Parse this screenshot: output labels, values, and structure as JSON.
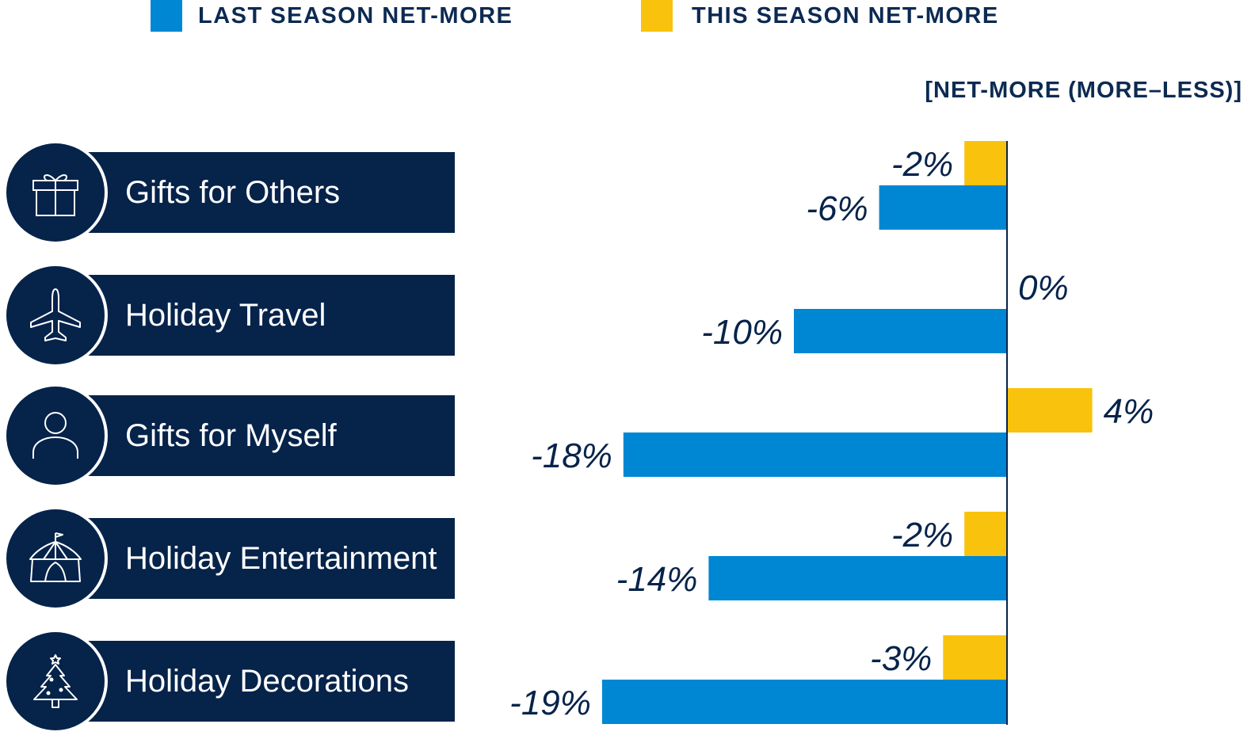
{
  "legend": {
    "last_label": "LAST SEASON NET-MORE",
    "this_label": "THIS SEASON NET-MORE",
    "last_color": "#0087d4",
    "this_color": "#f9c20c"
  },
  "axis_note": "[NET-MORE (MORE–LESS)]",
  "categories": [
    {
      "label": "Gifts for Others",
      "icon": "gift-icon"
    },
    {
      "label": "Holiday Travel",
      "icon": "airplane-icon"
    },
    {
      "label": "Gifts for Myself",
      "icon": "person-icon"
    },
    {
      "label": "Holiday Entertainment",
      "icon": "circus-tent-icon"
    },
    {
      "label": "Holiday Decorations",
      "icon": "christmas-tree-icon"
    }
  ],
  "chart_data": {
    "type": "bar",
    "orientation": "horizontal",
    "categories": [
      "Gifts for Others",
      "Holiday Travel",
      "Gifts for Myself",
      "Holiday Entertainment",
      "Holiday Decorations"
    ],
    "series": [
      {
        "name": "THIS SEASON NET-MORE",
        "color": "#f9c20c",
        "values": [
          -2,
          0,
          4,
          -2,
          -3
        ],
        "labels": [
          "-2%",
          "0%",
          "4%",
          "-2%",
          "-3%"
        ]
      },
      {
        "name": "LAST SEASON NET-MORE",
        "color": "#0087d4",
        "values": [
          -6,
          -10,
          -18,
          -14,
          -19
        ],
        "labels": [
          "-6%",
          "-10%",
          "-18%",
          "-14%",
          "-19%"
        ]
      }
    ],
    "unit": "%",
    "xlim": [
      -20,
      4
    ],
    "legend_position": "top",
    "grid": false
  }
}
